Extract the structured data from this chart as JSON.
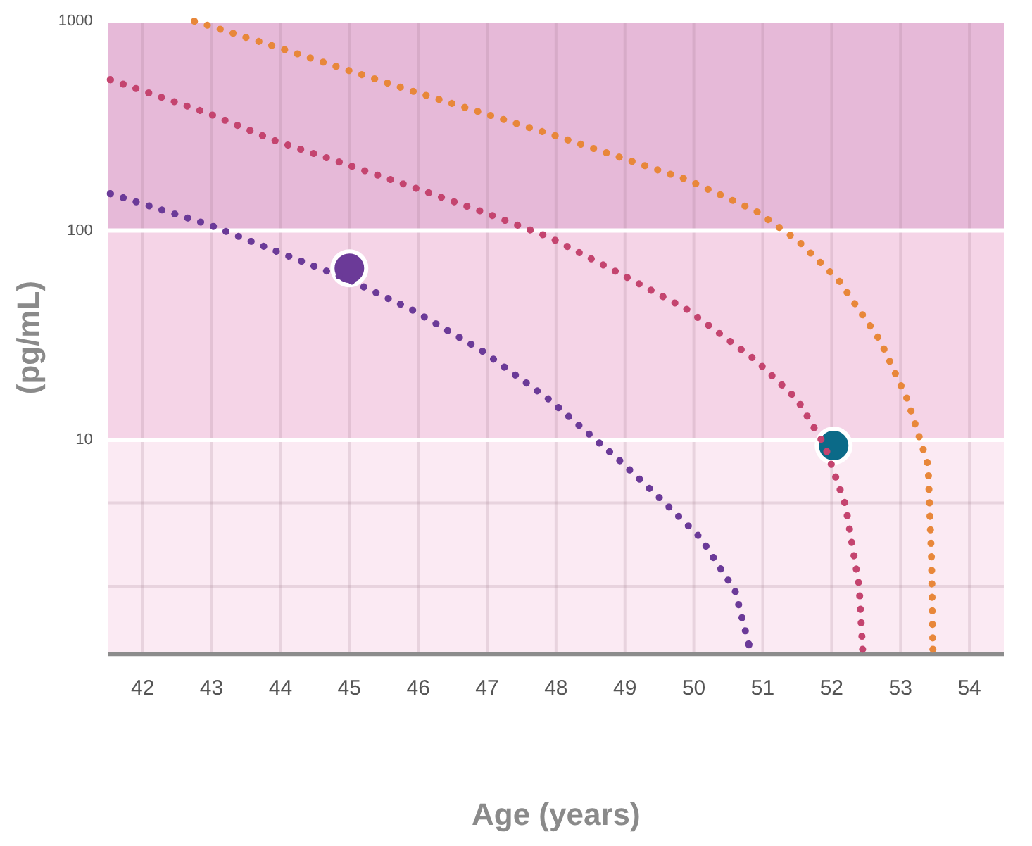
{
  "chart_data": {
    "type": "line",
    "xlabel": "Age (years)",
    "ylabel": "(pg/mL)",
    "log": "y",
    "grid": true,
    "legend": false,
    "line_style": "dotted",
    "marker": "none",
    "xlim": [
      41.5,
      54.5
    ],
    "xticks": [
      42,
      43,
      44,
      45,
      46,
      47,
      48,
      49,
      50,
      51,
      52,
      53,
      54
    ],
    "ylim": [
      0.95,
      1000
    ],
    "yticks": [
      {
        "value": 2,
        "label": null
      },
      {
        "value": 5,
        "label": null
      },
      10,
      100,
      1000
    ],
    "bands": [
      {
        "axis": "y",
        "from": 0.95,
        "to": 10,
        "color": "#fbeaf3"
      },
      {
        "axis": "y",
        "from": 10,
        "to": 100,
        "color": "#f5d4e7"
      },
      {
        "axis": "y",
        "from": 100,
        "to": 1000,
        "color": "#e6b9d8"
      }
    ],
    "series": [
      {
        "color": "#6b3a98",
        "x": [
          41.53,
          42.95,
          45,
          45.9,
          46.9,
          47.9,
          48.9,
          49.5,
          50.1,
          50.6,
          50.8
        ],
        "values": [
          150,
          107,
          58,
          42,
          27,
          15.6,
          8.1,
          5.3,
          3.4,
          1.9,
          1.05
        ]
      },
      {
        "color": "#c4446f",
        "x": [
          41.53,
          42.95,
          43.9,
          44.9,
          45.9,
          46.9,
          47.9,
          48.9,
          49.9,
          50.9,
          51.5,
          51.9,
          52.2,
          52.4,
          52.45
        ],
        "values": [
          525,
          363,
          270,
          210,
          162,
          124,
          93,
          63,
          42,
          24,
          15.6,
          9.4,
          4.9,
          2,
          1
        ]
      },
      {
        "color": "#e8873a",
        "x": [
          42.75,
          43.9,
          45.9,
          47.9,
          49.9,
          50.9,
          51.5,
          52.1,
          52.7,
          53.1,
          53.4,
          53.45,
          53.47
        ],
        "values": [
          1000,
          760,
          465,
          290,
          175,
          124,
          90,
          58,
          30,
          15.6,
          7.6,
          2.7,
          1
        ]
      },
      {
        "type": "scatter",
        "marker": "circle",
        "color": "#6b3a98",
        "x": [
          45
        ],
        "values": [
          66
        ]
      },
      {
        "type": "scatter",
        "marker": "circle",
        "color": "#0b6a88",
        "x": [
          52.03
        ],
        "values": [
          9.4
        ]
      }
    ]
  }
}
